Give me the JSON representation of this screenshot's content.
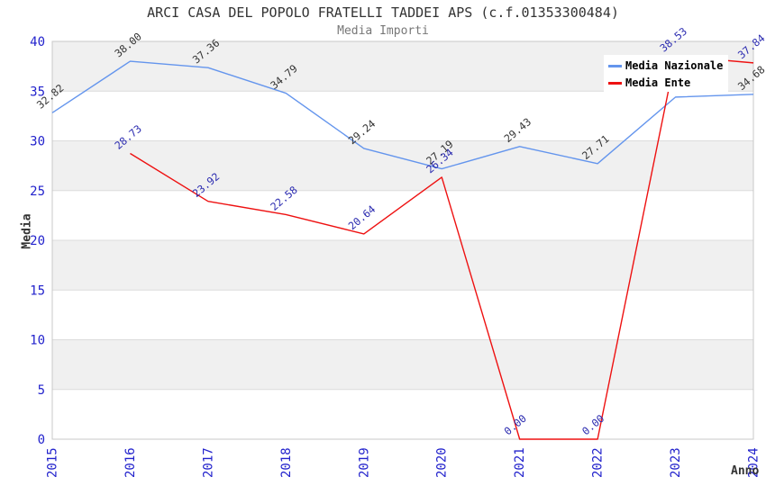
{
  "chart": {
    "title": "ARCI CASA DEL POPOLO FRATELLI TADDEI APS (c.f.01353300484)",
    "subtitle": "Media Importi",
    "ylabel": "Media",
    "xlabel": "Anno"
  },
  "palette": {
    "band": "#F0F0F0",
    "grid": "#DCDCDC",
    "border": "#C8C8C8",
    "tick_text": "#2222CC",
    "title_text": "#333333",
    "subtitle_text": "#777777",
    "axis_title_text": "#333333",
    "legend_bg": "#FFFFFF",
    "legend_text": "#000000",
    "nazionale_line": "#6495ED",
    "ente_line": "#EE1111"
  },
  "chart_data": {
    "type": "line",
    "title": "ARCI CASA DEL POPOLO FRATELLI TADDEI APS (c.f.01353300484)",
    "subtitle": "Media Importi",
    "xlabel": "Anno",
    "ylabel": "Media",
    "x_ticks": [
      2015,
      2016,
      2017,
      2018,
      2019,
      2020,
      2021,
      2022,
      2023,
      2024
    ],
    "ylim": [
      0,
      40
    ],
    "ytick_step": 5,
    "grid_bands": true,
    "legend_position": "top-right",
    "series": [
      {
        "name": "Media Nazionale",
        "color": "#6495ED",
        "label_color": "#333333",
        "x": [
          2015,
          2016,
          2017,
          2018,
          2019,
          2020,
          2021,
          2022,
          2023,
          2024
        ],
        "values": [
          32.82,
          38.0,
          37.36,
          34.79,
          29.24,
          27.19,
          29.43,
          27.71,
          34.4,
          34.68
        ],
        "point_labels": [
          "32.82",
          "38.00",
          "37.36",
          "34.79",
          "29.24",
          "27.19",
          "29.43",
          "27.71",
          "",
          "34.68"
        ],
        "note_2023": "point label hidden behind legend box"
      },
      {
        "name": "Media Ente",
        "color": "#EE1111",
        "label_color": "#2B2BB0",
        "x": [
          2016,
          2017,
          2018,
          2019,
          2020,
          2021,
          2022,
          2023,
          2024
        ],
        "values": [
          28.73,
          23.92,
          22.58,
          20.64,
          26.34,
          0.0,
          0.0,
          38.53,
          37.84
        ],
        "point_labels": [
          "28.73",
          "23.92",
          "22.58",
          "20.64",
          "26.34",
          "0.00",
          "0.00",
          "38.53",
          "37.84"
        ]
      }
    ]
  }
}
